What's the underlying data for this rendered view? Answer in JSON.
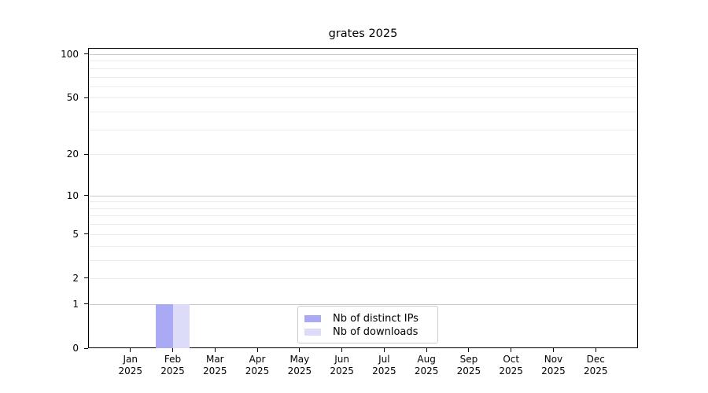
{
  "chart_data": {
    "type": "bar",
    "title": "grates 2025",
    "categories": [
      "Jan",
      "Feb",
      "Mar",
      "Apr",
      "May",
      "Jun",
      "Jul",
      "Aug",
      "Sep",
      "Oct",
      "Nov",
      "Dec"
    ],
    "category_year": "2025",
    "series": [
      {
        "name": "Nb of distinct IPs",
        "color": "#a9a9f4",
        "values": [
          0,
          1,
          0,
          0,
          0,
          0,
          0,
          0,
          0,
          0,
          0,
          0
        ]
      },
      {
        "name": "Nb of downloads",
        "color": "#dcdcf8",
        "values": [
          0,
          1,
          0,
          0,
          0,
          0,
          0,
          0,
          0,
          0,
          0,
          0
        ]
      }
    ],
    "xlabel": "",
    "ylabel": "",
    "y_axis": {
      "scale": "log1p",
      "tick_values": [
        0,
        1,
        2,
        5,
        10,
        20,
        50,
        100
      ],
      "tick_labels": [
        "0",
        "1",
        "2",
        "5",
        "10",
        "20",
        "50",
        "100"
      ],
      "minor_gridlines": [
        2,
        3,
        4,
        5,
        6,
        7,
        8,
        9,
        20,
        30,
        40,
        50,
        60,
        70,
        80,
        90
      ],
      "major_gridlines": [
        1,
        10,
        100
      ],
      "ylim": [
        0,
        110
      ]
    },
    "legend": {
      "position": "lower center"
    },
    "colors": {
      "grid_minor": "#ececec",
      "grid_major": "#c9c9c9",
      "spine": "#000000",
      "background": "#ffffff"
    }
  }
}
